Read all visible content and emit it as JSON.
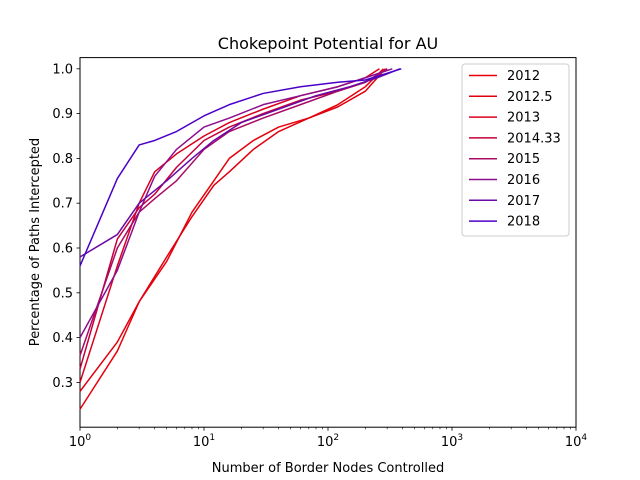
{
  "chart_data": {
    "type": "line",
    "title": "Chokepoint Potential for AU",
    "xlabel": "Number of Border Nodes Controlled",
    "ylabel": "Percentage of Paths Intercepted",
    "xscale": "log",
    "xlim": [
      1,
      10000
    ],
    "ylim": [
      0.2,
      1.025
    ],
    "x_ticks": [
      {
        "base": "10",
        "exp": "0",
        "value": 1
      },
      {
        "base": "10",
        "exp": "1",
        "value": 10
      },
      {
        "base": "10",
        "exp": "2",
        "value": 100
      },
      {
        "base": "10",
        "exp": "3",
        "value": 1000
      },
      {
        "base": "10",
        "exp": "4",
        "value": 10000
      }
    ],
    "y_ticks": [
      "0.3",
      "0.4",
      "0.5",
      "0.6",
      "0.7",
      "0.8",
      "0.9",
      "1.0"
    ],
    "grid": false,
    "legend_position": "upper-right",
    "series": [
      {
        "name": "2012",
        "color": "#e8000b",
        "x": [
          1,
          2,
          3,
          5,
          8,
          12,
          16,
          25,
          40,
          70,
          120,
          200,
          280
        ],
        "y": [
          0.24,
          0.37,
          0.48,
          0.57,
          0.68,
          0.75,
          0.8,
          0.84,
          0.87,
          0.89,
          0.92,
          0.96,
          1.0
        ]
      },
      {
        "name": "2012.5",
        "color": "#e0000f",
        "x": [
          1,
          2,
          3,
          5,
          8,
          12,
          16,
          25,
          40,
          70,
          120,
          200,
          290
        ],
        "y": [
          0.28,
          0.39,
          0.48,
          0.58,
          0.67,
          0.74,
          0.77,
          0.82,
          0.86,
          0.89,
          0.915,
          0.95,
          1.0
        ]
      },
      {
        "name": "2013",
        "color": "#d8001f",
        "x": [
          1,
          2,
          3,
          4,
          6,
          10,
          16,
          30,
          60,
          120,
          200,
          260
        ],
        "y": [
          0.3,
          0.56,
          0.7,
          0.77,
          0.81,
          0.85,
          0.88,
          0.91,
          0.94,
          0.96,
          0.98,
          1.0
        ]
      },
      {
        "name": "2014.33",
        "color": "#c5003a",
        "x": [
          1,
          2,
          3,
          4,
          6,
          10,
          16,
          30,
          60,
          120,
          200,
          300
        ],
        "y": [
          0.33,
          0.62,
          0.69,
          0.72,
          0.78,
          0.84,
          0.87,
          0.9,
          0.93,
          0.95,
          0.97,
          1.0
        ]
      },
      {
        "name": "2015",
        "color": "#a90a64",
        "x": [
          1,
          2,
          3,
          4,
          6,
          10,
          16,
          30,
          60,
          120,
          200,
          300
        ],
        "y": [
          0.36,
          0.6,
          0.68,
          0.71,
          0.75,
          0.82,
          0.86,
          0.89,
          0.92,
          0.95,
          0.97,
          1.0
        ]
      },
      {
        "name": "2016",
        "color": "#8e0e8d",
        "x": [
          1,
          2,
          3,
          4,
          6,
          10,
          16,
          30,
          60,
          120,
          200,
          330
        ],
        "y": [
          0.4,
          0.55,
          0.68,
          0.76,
          0.82,
          0.87,
          0.89,
          0.92,
          0.94,
          0.96,
          0.98,
          1.0
        ]
      },
      {
        "name": "2017",
        "color": "#6a0aa5",
        "x": [
          1,
          2,
          3,
          5,
          8,
          12,
          20,
          40,
          80,
          150,
          250,
          380
        ],
        "y": [
          0.58,
          0.63,
          0.7,
          0.75,
          0.8,
          0.84,
          0.88,
          0.91,
          0.94,
          0.96,
          0.98,
          1.0
        ]
      },
      {
        "name": "2018",
        "color": "#4b00c8",
        "x": [
          1,
          2,
          3,
          4,
          6,
          10,
          16,
          30,
          60,
          120,
          200,
          390
        ],
        "y": [
          0.56,
          0.755,
          0.83,
          0.84,
          0.86,
          0.895,
          0.92,
          0.945,
          0.96,
          0.97,
          0.975,
          1.0
        ]
      }
    ]
  }
}
